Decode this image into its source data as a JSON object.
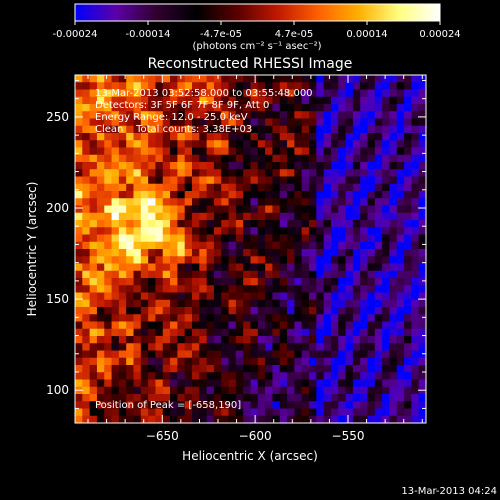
{
  "chart_data": {
    "type": "heatmap",
    "title": "Reconstructed RHESSI Image",
    "xlabel": "Heliocentric X (arcsec)",
    "ylabel": "Heliocentric Y (arcsec)",
    "xlim": [
      -697,
      -508
    ],
    "ylim": [
      82,
      273
    ],
    "x_ticks": [
      -650,
      -600,
      -550
    ],
    "y_ticks": [
      100,
      150,
      200,
      250
    ],
    "colorbar": {
      "range": [
        -0.00024,
        0.00024
      ],
      "ticks": [
        "-0.00024",
        "-0.00014",
        "-4.7e-05",
        "4.7e-05",
        "0.00014",
        "0.00024"
      ],
      "label": "(photons cm⁻² s⁻¹ asec⁻²)",
      "colormap": [
        "#0000ff",
        "#5c00a8",
        "#300030",
        "#000000",
        "#5a0000",
        "#c01800",
        "#ff6000",
        "#ffb000",
        "#ffff80",
        "#ffffff"
      ]
    },
    "annotations": [
      "13-Mar-2013 03:52:58.000 to 03:55:48.000",
      "Detectors: 3F 5F 6F 7F 8F 9F, Att 0",
      "Energy Range: 12.0 - 25.0 keV",
      "Clean    Total counts: 3.38E+03"
    ],
    "peak_label": "Position of Peak = [-658,190]",
    "peak": [
      -658,
      190
    ],
    "grid": false
  },
  "footer": {
    "timestamp": "13-Mar-2013 04:24"
  }
}
